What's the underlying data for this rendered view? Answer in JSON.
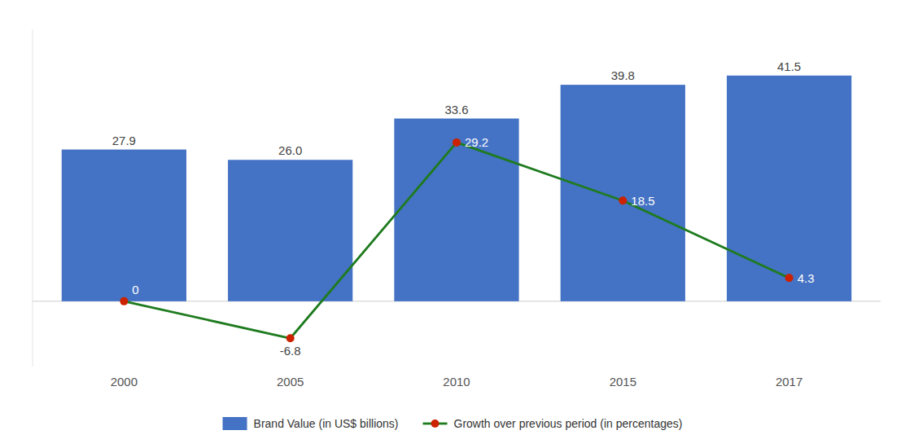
{
  "chart_data": {
    "type": "bar",
    "categories": [
      "2000",
      "2005",
      "2010",
      "2015",
      "2017"
    ],
    "series": [
      {
        "name": "Brand Value (in US$ billions)",
        "type": "bar",
        "color": "#4472c4",
        "values": [
          27.9,
          26.0,
          33.6,
          39.8,
          41.5
        ],
        "value_labels": [
          "27.9",
          "26.0",
          "33.6",
          "39.8",
          "41.5"
        ]
      },
      {
        "name": "Growth over previous period (in percentages)",
        "type": "line",
        "color": "#1e7b1e",
        "marker": "circle",
        "colors": [
          "#cc2200",
          "#cc2200",
          "#cc2200",
          "#cc2200",
          "#cc2200"
        ],
        "values": [
          0,
          -6.8,
          29.2,
          18.5,
          4.3
        ]
      }
    ],
    "ylim": [
      -12,
      50
    ],
    "grid": false,
    "legend": "bottom",
    "data_labels": true,
    "tick_labels": "x"
  }
}
